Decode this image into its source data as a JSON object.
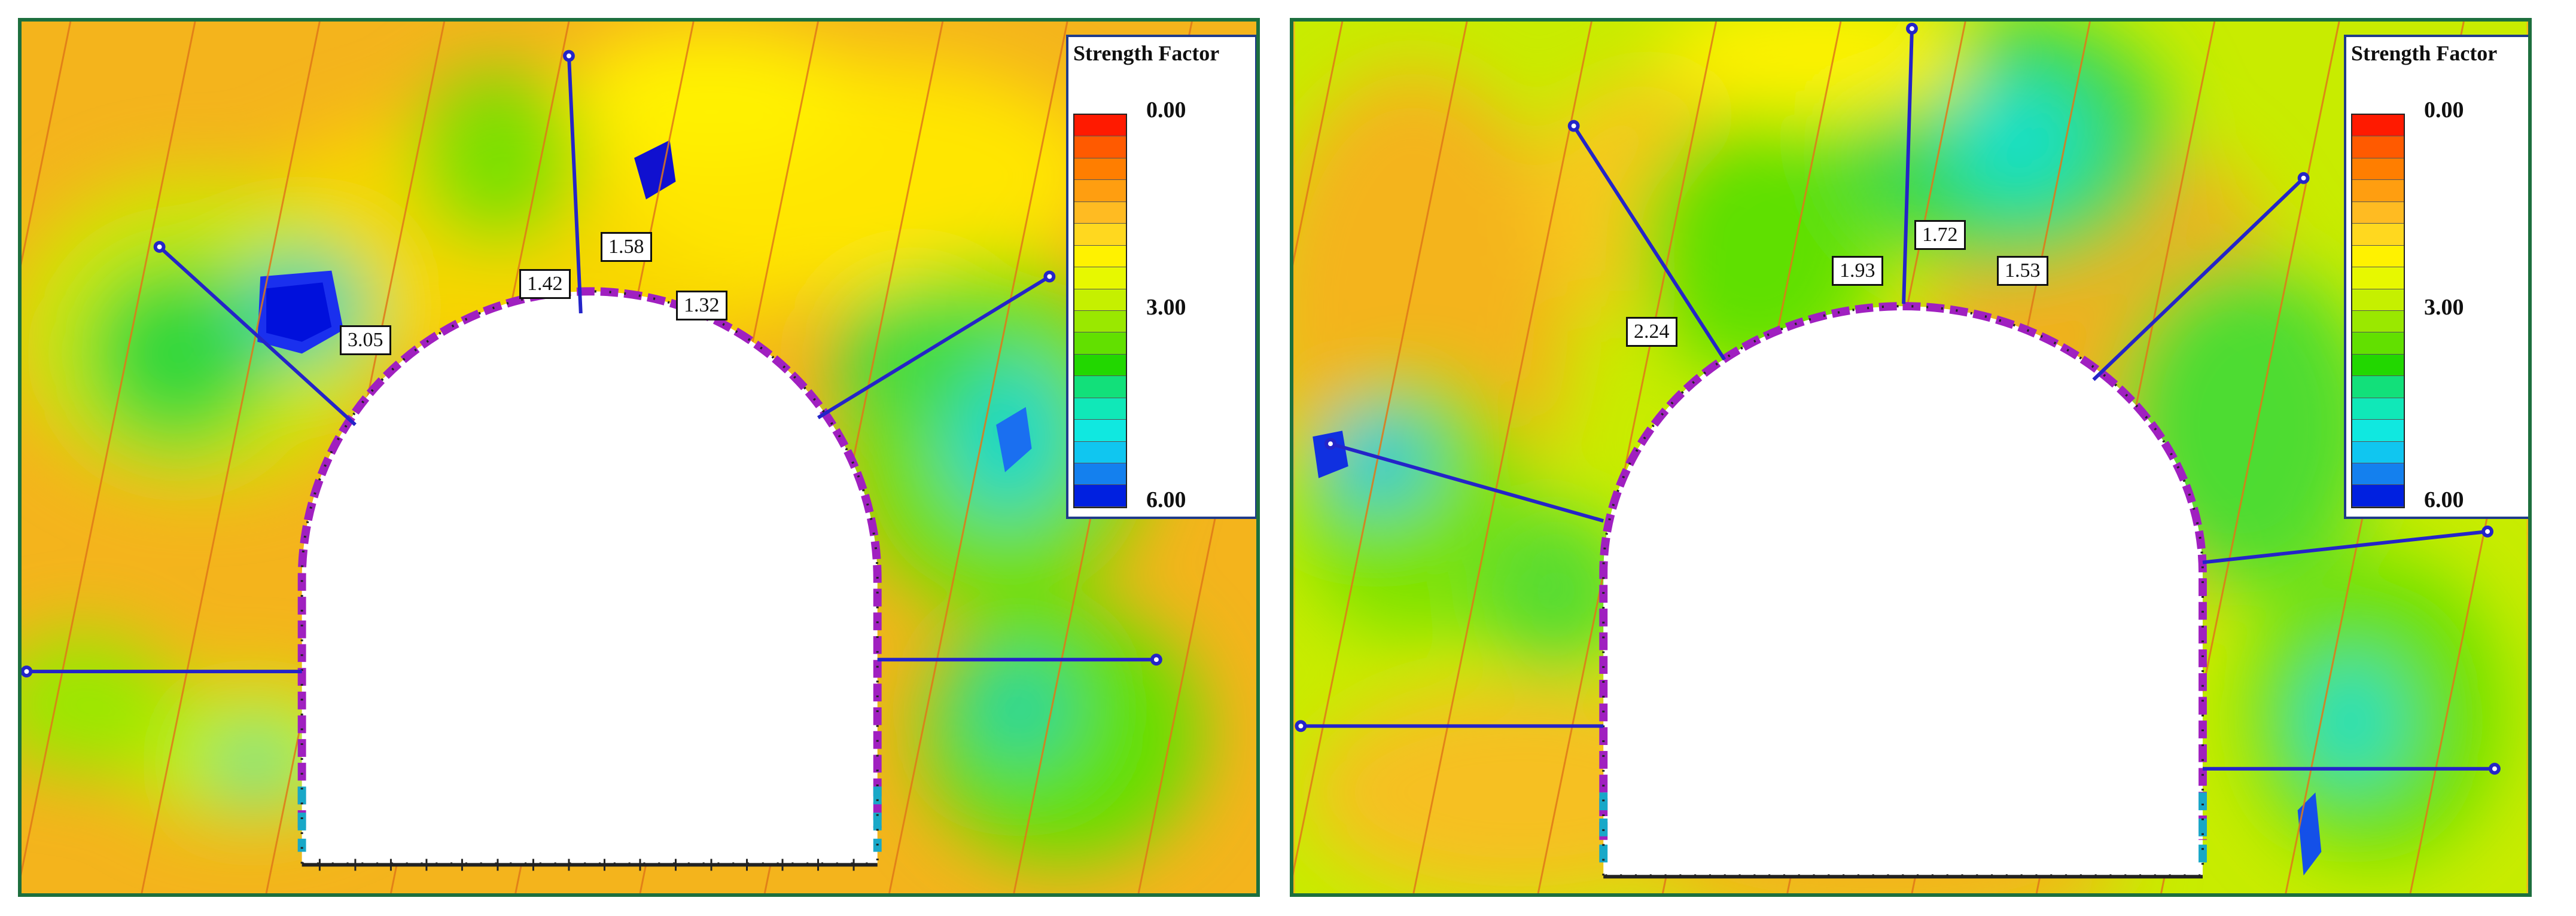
{
  "legend": {
    "title": "Strength Factor",
    "ticks": [
      "0.00",
      "3.00",
      "6.00"
    ],
    "colors": [
      "#ff1a00",
      "#ff5a00",
      "#ff7e00",
      "#ff9e10",
      "#ffbb22",
      "#ffd81f",
      "#fff200",
      "#e7f800",
      "#c5f000",
      "#9ae800",
      "#62e000",
      "#22d700",
      "#12e07a",
      "#10e8b8",
      "#10e8e0",
      "#10c6f0",
      "#1480ee",
      "#0020e0"
    ]
  },
  "panels": [
    {
      "id": "left",
      "labels": [
        "3.05",
        "1.42",
        "1.58",
        "1.32"
      ]
    },
    {
      "id": "right",
      "labels": [
        "2.24",
        "1.93",
        "1.72",
        "1.53"
      ]
    }
  ]
}
